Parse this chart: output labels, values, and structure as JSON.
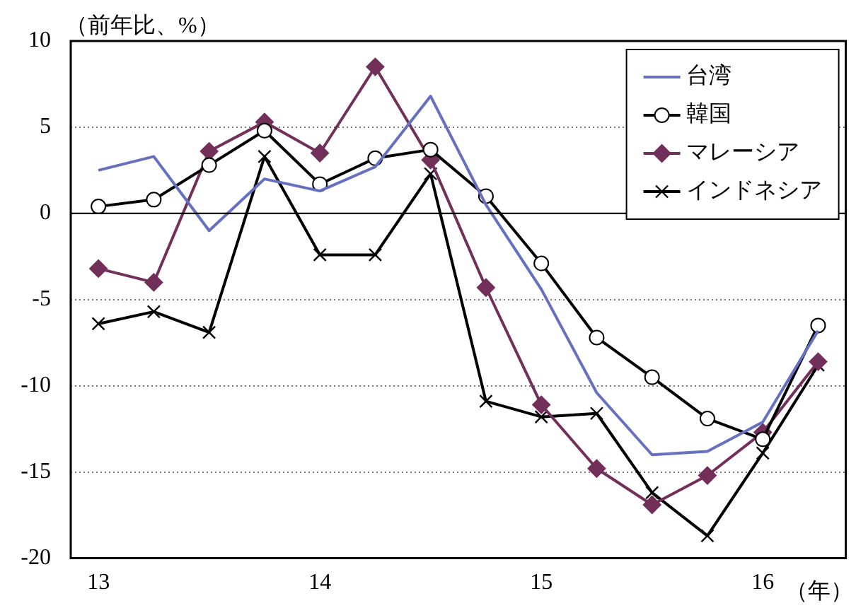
{
  "chart_data": {
    "type": "line",
    "ylabel": "（前年比、%）",
    "xlabel": "（年）",
    "categories": [
      "13",
      null,
      null,
      null,
      "14",
      null,
      null,
      null,
      "15",
      null,
      null,
      null,
      "16",
      null
    ],
    "series": [
      {
        "name": "台湾",
        "color": "#6670c0",
        "marker": "none",
        "values": [
          2.5,
          3.3,
          -1.0,
          2.0,
          1.3,
          2.7,
          6.8,
          0.5,
          -4.4,
          -10.4,
          -14.0,
          -13.8,
          -12.1,
          -6.8
        ]
      },
      {
        "name": "韓国",
        "color": "#000000",
        "marker": "circle",
        "values": [
          0.4,
          0.8,
          2.8,
          4.8,
          1.7,
          3.2,
          3.7,
          1.0,
          -2.9,
          -7.2,
          -9.5,
          -11.9,
          -13.1,
          -6.5
        ]
      },
      {
        "name": "マレーシア",
        "color": "#722f5a",
        "marker": "diamond",
        "values": [
          -3.2,
          -4.0,
          3.6,
          5.3,
          3.5,
          8.5,
          3.1,
          -4.3,
          -11.1,
          -14.8,
          -16.9,
          -15.2,
          -12.7,
          -8.6
        ]
      },
      {
        "name": "インドネシア",
        "color": "#000000",
        "marker": "cross",
        "values": [
          -6.4,
          -5.7,
          -6.9,
          3.3,
          -2.4,
          -2.4,
          2.3,
          -10.9,
          -11.8,
          -11.6,
          -16.2,
          -18.7,
          -13.9,
          -8.8
        ]
      }
    ],
    "ylim": [
      -20,
      10
    ],
    "yticks": [
      -20,
      -15,
      -10,
      -5,
      0,
      5,
      10
    ],
    "grid": "y",
    "legend": "top right",
    "line_style": "solid"
  }
}
